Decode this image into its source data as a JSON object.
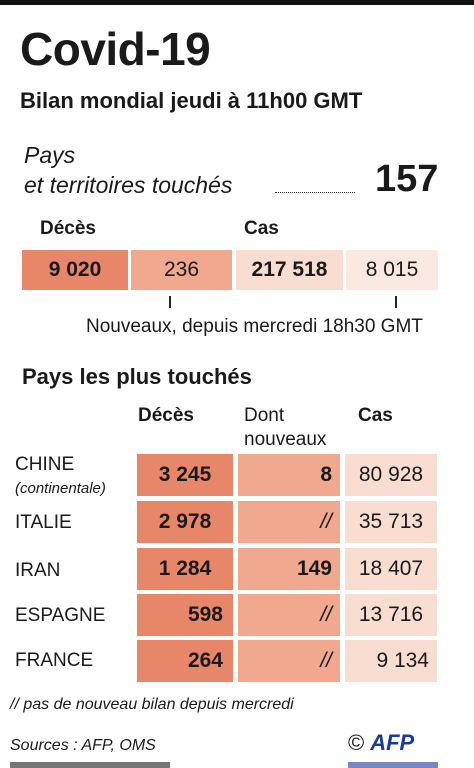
{
  "title": "Covid-19",
  "subtitle": "Bilan mondial jeudi à 11h00 GMT",
  "countries_line1": "Pays",
  "countries_line2": "et territoires touchés",
  "countries_count": "157",
  "global": {
    "deaths_label": "Décès",
    "cases_label": "Cas",
    "deaths_total": "9 020",
    "deaths_new": "236",
    "cases_total": "217 518",
    "cases_new": "8 015",
    "new_note": "Nouveaux, depuis mercredi 18h30 GMT"
  },
  "table": {
    "section_title": "Pays les plus touchés",
    "col_deaths": "Décès",
    "col_new_line1": "Dont",
    "col_new_line2": "nouveaux",
    "col_cases": "Cas",
    "rows": [
      {
        "country": "CHINE",
        "sub": "(continentale)",
        "deaths": "3 245",
        "new": "8",
        "cases": "80 928"
      },
      {
        "country": "ITALIE",
        "sub": "",
        "deaths": "2 978",
        "new": "//",
        "cases": "35 713"
      },
      {
        "country": "IRAN",
        "sub": "",
        "deaths": "1 284",
        "new": "149",
        "cases": "18 407"
      },
      {
        "country": "ESPAGNE",
        "sub": "",
        "deaths": "598",
        "new": "//",
        "cases": "13 716"
      },
      {
        "country": "FRANCE",
        "sub": "",
        "deaths": "264",
        "new": "//",
        "cases": "9 134"
      }
    ]
  },
  "footnote": "// pas de nouveau bilan depuis mercredi",
  "sources": "Sources : AFP, OMS",
  "copyright": "©",
  "logo": "AFP",
  "colors": {
    "dark": "#e8866a",
    "mid": "#f0a88f",
    "light": "#f9ddd1",
    "lighter": "#fbe9e1",
    "logo": "#1a3a9a"
  }
}
